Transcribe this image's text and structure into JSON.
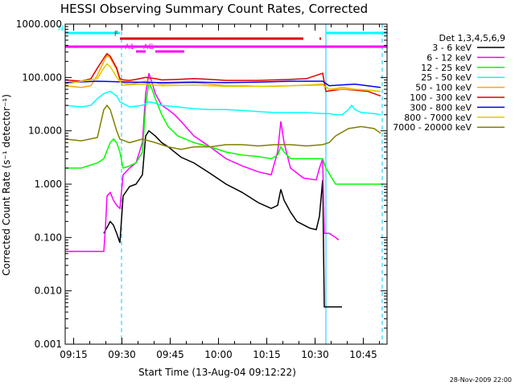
{
  "chart_data": {
    "type": "line",
    "title": "HESSI Observing Summary Count Rates, Corrected",
    "xlabel": "Start Time (13-Aug-04 09:12:22)",
    "ylabel": "Corrected Count Rate (s⁻¹ detector⁻¹)",
    "x_unit": "minutes after 09:12:22",
    "xlim": [
      0,
      100
    ],
    "ylim": [
      0.001,
      1000
    ],
    "yscale": "log",
    "x_ticks": [
      "09:15",
      "09:30",
      "09:45",
      "10:00",
      "10:15",
      "10:30",
      "10:45"
    ],
    "y_ticks": [
      "1000.000",
      "100.000",
      "10.000",
      "1.000",
      "0.100",
      "0.010",
      "0.001"
    ],
    "legend_title": "Det 1,3,4,5,6,9",
    "legend_position": "right, outside plot",
    "timestamp": "28-Nov-2009 22:00",
    "flag_bars": [
      {
        "label": "N",
        "color": "#00ffff",
        "segments": [
          [
            0,
            17
          ],
          [
            81,
            100
          ]
        ]
      },
      {
        "label": "F",
        "color": "#e00000",
        "segments": [
          [
            17,
            74
          ],
          [
            79,
            79.5
          ]
        ]
      },
      {
        "label": "",
        "color": "#ff00ff",
        "segments": [
          [
            0,
            100
          ]
        ]
      },
      {
        "label": "AG",
        "color": "#ff00ff",
        "segments": [
          [
            28,
            37
          ]
        ]
      },
      {
        "label": "A1",
        "color": "#ff00ff",
        "segments": [
          [
            22,
            25
          ]
        ]
      }
    ],
    "vertical_markers": [
      {
        "x": 17.5,
        "style": "dashed",
        "color": "#00c8ff"
      },
      {
        "x": 81,
        "style": "solid",
        "color": "#00c8ff"
      },
      {
        "x": 98.5,
        "style": "dashed",
        "color": "#00c8ff"
      }
    ],
    "series": [
      {
        "name": "3 - 6 keV",
        "color": "#000000",
        "points": [
          [
            12,
            0.12
          ],
          [
            14,
            0.2
          ],
          [
            15,
            0.17
          ],
          [
            16,
            0.12
          ],
          [
            17,
            0.08
          ],
          [
            18,
            0.6
          ],
          [
            20,
            0.9
          ],
          [
            22,
            1.0
          ],
          [
            24,
            1.5
          ],
          [
            25,
            8
          ],
          [
            26,
            10
          ],
          [
            28,
            8
          ],
          [
            30,
            6
          ],
          [
            32,
            5
          ],
          [
            34,
            4
          ],
          [
            36,
            3.2
          ],
          [
            40,
            2.5
          ],
          [
            45,
            1.6
          ],
          [
            50,
            1.0
          ],
          [
            55,
            0.7
          ],
          [
            60,
            0.45
          ],
          [
            64,
            0.35
          ],
          [
            66,
            0.4
          ],
          [
            67,
            0.8
          ],
          [
            68,
            0.5
          ],
          [
            70,
            0.3
          ],
          [
            72,
            0.2
          ],
          [
            76,
            0.15
          ],
          [
            78,
            0.14
          ],
          [
            79,
            0.25
          ],
          [
            80,
            1.2
          ],
          [
            80.5,
            0.005
          ],
          [
            83,
            0.005
          ],
          [
            86,
            0.005
          ]
        ]
      },
      {
        "name": "6 - 12 keV",
        "color": "#ff00ff",
        "points": [
          [
            0,
            0.055
          ],
          [
            12,
            0.055
          ],
          [
            12.5,
            0.15
          ],
          [
            13,
            0.6
          ],
          [
            14,
            0.7
          ],
          [
            15,
            0.5
          ],
          [
            16,
            0.4
          ],
          [
            17,
            0.35
          ],
          [
            18,
            1.5
          ],
          [
            20,
            2.0
          ],
          [
            22,
            2.5
          ],
          [
            24,
            6
          ],
          [
            25,
            50
          ],
          [
            26,
            120
          ],
          [
            27,
            80
          ],
          [
            28,
            50
          ],
          [
            30,
            30
          ],
          [
            32,
            25
          ],
          [
            34,
            20
          ],
          [
            36,
            15
          ],
          [
            40,
            8
          ],
          [
            45,
            5
          ],
          [
            50,
            3
          ],
          [
            55,
            2.2
          ],
          [
            60,
            1.7
          ],
          [
            64,
            1.5
          ],
          [
            66,
            4
          ],
          [
            67,
            15
          ],
          [
            68,
            6
          ],
          [
            70,
            2
          ],
          [
            74,
            1.3
          ],
          [
            78,
            1.2
          ],
          [
            79,
            2
          ],
          [
            80,
            3
          ],
          [
            80.5,
            0.12
          ],
          [
            82,
            0.12
          ],
          [
            84,
            0.1
          ],
          [
            85,
            0.09
          ]
        ]
      },
      {
        "name": "12 - 25 keV",
        "color": "#00ff00",
        "points": [
          [
            0,
            2
          ],
          [
            5,
            2
          ],
          [
            10,
            2.5
          ],
          [
            12,
            3
          ],
          [
            14,
            6
          ],
          [
            15,
            7
          ],
          [
            16,
            6
          ],
          [
            17,
            4
          ],
          [
            18,
            2
          ],
          [
            20,
            2.2
          ],
          [
            22,
            2.5
          ],
          [
            24,
            4
          ],
          [
            25,
            30
          ],
          [
            26,
            80
          ],
          [
            27,
            60
          ],
          [
            28,
            40
          ],
          [
            30,
            20
          ],
          [
            32,
            12
          ],
          [
            35,
            8
          ],
          [
            40,
            6
          ],
          [
            45,
            5
          ],
          [
            50,
            4
          ],
          [
            55,
            3.5
          ],
          [
            60,
            3.3
          ],
          [
            64,
            3
          ],
          [
            66,
            3.5
          ],
          [
            67,
            5
          ],
          [
            68,
            4
          ],
          [
            70,
            3
          ],
          [
            75,
            3
          ],
          [
            80,
            3
          ],
          [
            81,
            2
          ],
          [
            84,
            1
          ],
          [
            90,
            1
          ],
          [
            98,
            1
          ]
        ]
      },
      {
        "name": "25 - 50 keV",
        "color": "#00ffff",
        "points": [
          [
            0,
            30
          ],
          [
            5,
            28
          ],
          [
            8,
            30
          ],
          [
            10,
            40
          ],
          [
            12,
            50
          ],
          [
            14,
            55
          ],
          [
            16,
            45
          ],
          [
            17,
            35
          ],
          [
            20,
            28
          ],
          [
            24,
            30
          ],
          [
            26,
            35
          ],
          [
            28,
            33
          ],
          [
            30,
            30
          ],
          [
            35,
            28
          ],
          [
            40,
            26
          ],
          [
            45,
            25
          ],
          [
            50,
            25
          ],
          [
            55,
            24
          ],
          [
            60,
            23
          ],
          [
            65,
            22
          ],
          [
            70,
            22
          ],
          [
            75,
            22
          ],
          [
            80,
            21
          ],
          [
            82,
            21
          ],
          [
            84,
            20
          ],
          [
            86,
            20
          ],
          [
            88,
            25
          ],
          [
            89,
            30
          ],
          [
            90,
            25
          ],
          [
            92,
            22
          ],
          [
            96,
            21
          ],
          [
            98,
            20
          ]
        ]
      },
      {
        "name": "50 - 100 keV",
        "color": "#ffa500",
        "points": [
          [
            0,
            70
          ],
          [
            5,
            65
          ],
          [
            8,
            70
          ],
          [
            10,
            110
          ],
          [
            12,
            200
          ],
          [
            13,
            260
          ],
          [
            14,
            230
          ],
          [
            16,
            140
          ],
          [
            17,
            90
          ],
          [
            18,
            80
          ],
          [
            20,
            75
          ],
          [
            22,
            78
          ],
          [
            25,
            85
          ],
          [
            28,
            80
          ],
          [
            30,
            75
          ],
          [
            35,
            78
          ],
          [
            40,
            80
          ],
          [
            45,
            75
          ],
          [
            50,
            70
          ],
          [
            55,
            70
          ],
          [
            60,
            68
          ],
          [
            65,
            68
          ],
          [
            70,
            70
          ],
          [
            75,
            72
          ],
          [
            80,
            75
          ],
          [
            82,
            60
          ],
          [
            84,
            62
          ],
          [
            86,
            65
          ],
          [
            90,
            60
          ],
          [
            94,
            58
          ],
          [
            98,
            55
          ]
        ]
      },
      {
        "name": "100 - 300 keV",
        "color": "#e00000",
        "points": [
          [
            0,
            90
          ],
          [
            5,
            85
          ],
          [
            8,
            95
          ],
          [
            10,
            150
          ],
          [
            12,
            230
          ],
          [
            13,
            280
          ],
          [
            14,
            250
          ],
          [
            16,
            150
          ],
          [
            17,
            95
          ],
          [
            18,
            90
          ],
          [
            20,
            88
          ],
          [
            22,
            92
          ],
          [
            25,
            100
          ],
          [
            28,
            95
          ],
          [
            30,
            90
          ],
          [
            35,
            92
          ],
          [
            40,
            95
          ],
          [
            45,
            92
          ],
          [
            50,
            88
          ],
          [
            55,
            88
          ],
          [
            60,
            88
          ],
          [
            65,
            90
          ],
          [
            70,
            92
          ],
          [
            75,
            95
          ],
          [
            80,
            120
          ],
          [
            81,
            55
          ],
          [
            84,
            58
          ],
          [
            86,
            60
          ],
          [
            90,
            58
          ],
          [
            94,
            55
          ],
          [
            98,
            45
          ]
        ]
      },
      {
        "name": "300 - 800 keV",
        "color": "#0000ff",
        "points": [
          [
            0,
            80
          ],
          [
            10,
            85
          ],
          [
            20,
            82
          ],
          [
            30,
            80
          ],
          [
            40,
            82
          ],
          [
            50,
            80
          ],
          [
            60,
            82
          ],
          [
            70,
            85
          ],
          [
            80,
            85
          ],
          [
            82,
            70
          ],
          [
            90,
            75
          ],
          [
            98,
            65
          ]
        ]
      },
      {
        "name": "800 - 7000 keV",
        "color": "#ddcc00",
        "points": [
          [
            0,
            75
          ],
          [
            10,
            95
          ],
          [
            12,
            150
          ],
          [
            13,
            180
          ],
          [
            14,
            160
          ],
          [
            16,
            100
          ],
          [
            18,
            72
          ],
          [
            25,
            75
          ],
          [
            30,
            70
          ],
          [
            40,
            72
          ],
          [
            50,
            68
          ],
          [
            60,
            68
          ],
          [
            70,
            70
          ],
          [
            80,
            72
          ],
          [
            82,
            60
          ],
          [
            90,
            60
          ],
          [
            98,
            55
          ]
        ]
      },
      {
        "name": "7000 - 20000 keV",
        "color": "#808000",
        "points": [
          [
            0,
            7
          ],
          [
            5,
            6.5
          ],
          [
            10,
            7.5
          ],
          [
            12,
            25
          ],
          [
            13,
            30
          ],
          [
            14,
            25
          ],
          [
            16,
            10
          ],
          [
            17,
            7
          ],
          [
            20,
            6
          ],
          [
            24,
            7
          ],
          [
            28,
            6
          ],
          [
            32,
            5
          ],
          [
            36,
            4.5
          ],
          [
            40,
            5
          ],
          [
            45,
            5
          ],
          [
            50,
            5.5
          ],
          [
            55,
            5.5
          ],
          [
            60,
            5.2
          ],
          [
            65,
            5.5
          ],
          [
            70,
            5.5
          ],
          [
            75,
            5.2
          ],
          [
            80,
            5.5
          ],
          [
            82,
            6
          ],
          [
            84,
            8
          ],
          [
            88,
            11
          ],
          [
            92,
            12
          ],
          [
            96,
            11
          ],
          [
            98,
            9
          ]
        ]
      }
    ]
  }
}
